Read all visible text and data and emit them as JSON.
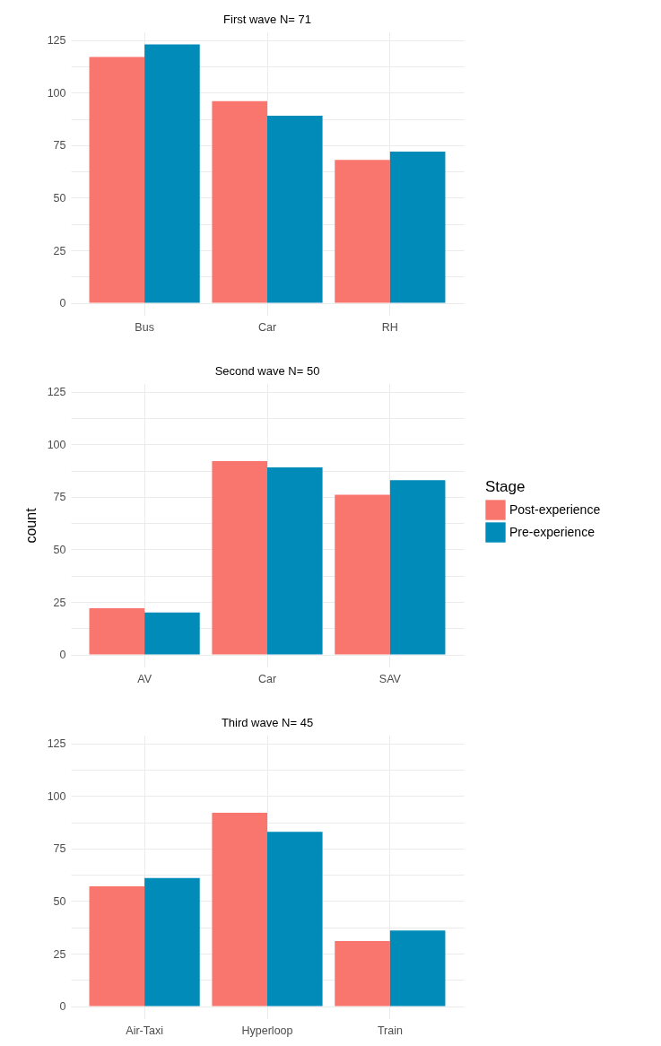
{
  "chart_data": [
    {
      "type": "bar",
      "title": "First wave N= 71",
      "categories": [
        "Bus",
        "Car",
        "RH"
      ],
      "legend_title": "Stage",
      "legend": "right",
      "series": [
        {
          "name": "Post-experience",
          "color": "#f8766d",
          "values": [
            117,
            96,
            68
          ]
        },
        {
          "name": "Pre-experience",
          "color": "#008bb8",
          "values": [
            123,
            89,
            72
          ]
        }
      ],
      "ylim": [
        -6.15,
        129.15
      ],
      "yticks": [
        0,
        {
          "value": 12.5,
          "label": null
        },
        25,
        {
          "value": 37.5,
          "label": null
        },
        50,
        {
          "value": 62.5,
          "label": null
        },
        75,
        {
          "value": 87.5,
          "label": null
        },
        100,
        {
          "value": 112.5,
          "label": null
        },
        125
      ],
      "grid": true
    },
    {
      "type": "bar",
      "title": "Second wave N= 50",
      "categories": [
        "AV",
        "Car",
        "SAV"
      ],
      "ylabel": "count",
      "legend": "right",
      "series": [
        {
          "name": "Post-experience",
          "color": "#f8766d",
          "values": [
            22,
            92,
            76
          ]
        },
        {
          "name": "Pre-experience",
          "color": "#008bb8",
          "values": [
            20,
            89,
            83
          ]
        }
      ],
      "ylim": [
        -6.15,
        129.15
      ],
      "yticks": [
        0,
        {
          "value": 12.5,
          "label": null
        },
        25,
        {
          "value": 37.5,
          "label": null
        },
        50,
        {
          "value": 62.5,
          "label": null
        },
        75,
        {
          "value": 87.5,
          "label": null
        },
        100,
        {
          "value": 112.5,
          "label": null
        },
        125
      ],
      "grid": true
    },
    {
      "type": "bar",
      "title": "Third wave N= 45",
      "categories": [
        "Air-Taxi",
        "Hyperloop",
        "Train"
      ],
      "legend": "right",
      "series": [
        {
          "name": "Post-experience",
          "color": "#f8766d",
          "values": [
            57,
            92,
            31
          ]
        },
        {
          "name": "Pre-experience",
          "color": "#008bb8",
          "values": [
            61,
            83,
            36
          ]
        }
      ],
      "ylim": [
        -6.15,
        129.15
      ],
      "yticks": [
        0,
        {
          "value": 12.5,
          "label": null
        },
        25,
        {
          "value": 37.5,
          "label": null
        },
        50,
        {
          "value": 62.5,
          "label": null
        },
        75,
        {
          "value": 87.5,
          "label": null
        },
        100,
        {
          "value": 112.5,
          "label": null
        },
        125
      ],
      "grid": true
    }
  ]
}
